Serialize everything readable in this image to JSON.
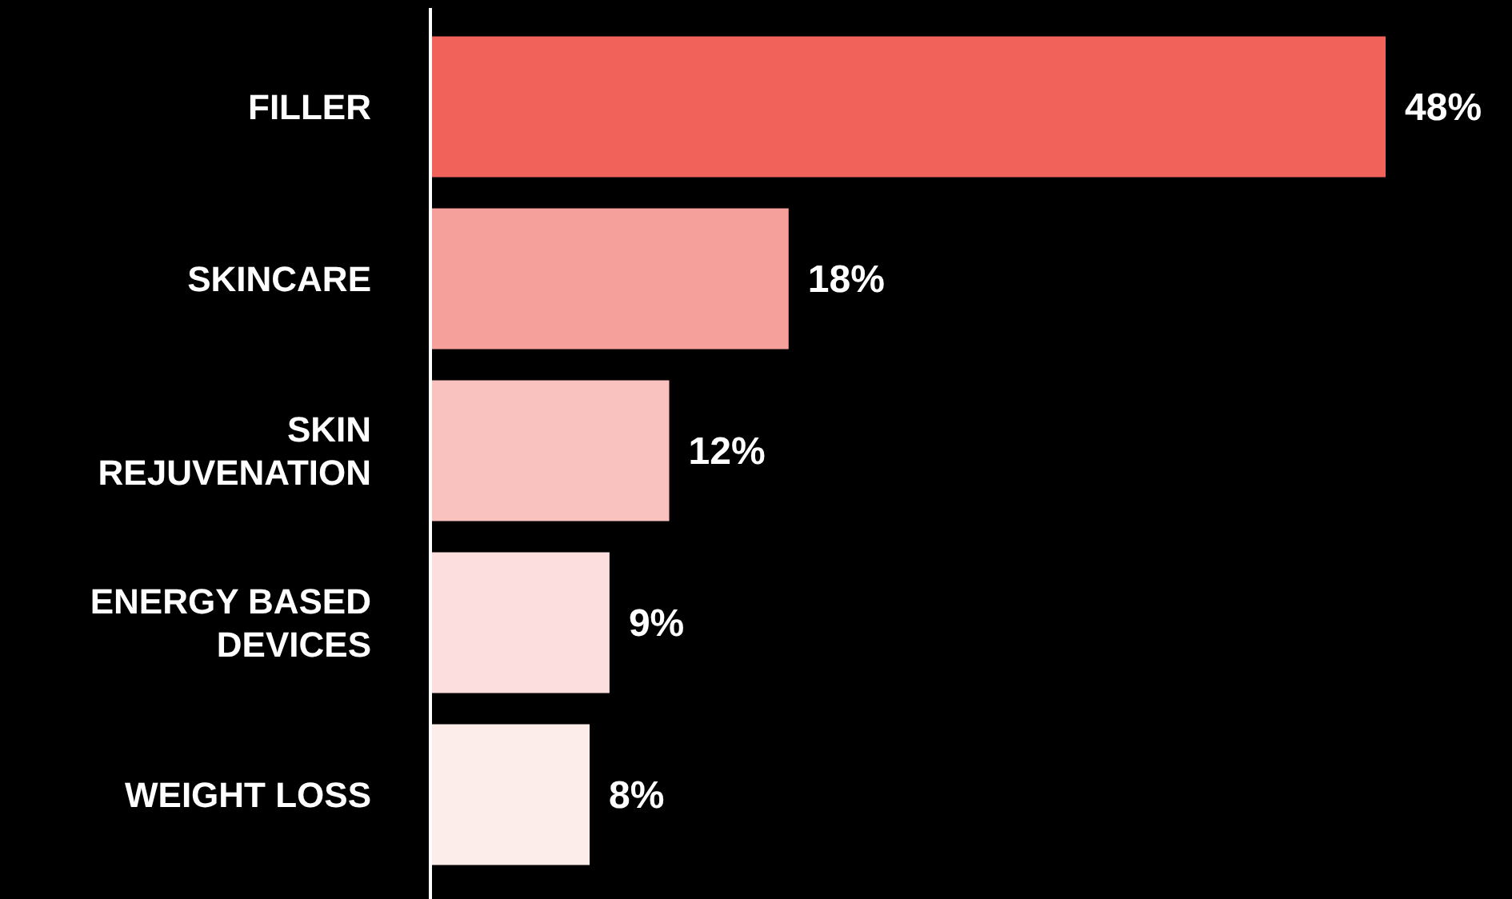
{
  "chart_data": {
    "type": "bar",
    "orientation": "horizontal",
    "categories": [
      "FILLER",
      "SKINCARE",
      "SKIN REJUVENATION",
      "ENERGY BASED DEVICES",
      "WEIGHT LOSS"
    ],
    "values": [
      48,
      18,
      12,
      9,
      8
    ],
    "value_labels": [
      "48%",
      "18%",
      "12%",
      "9%",
      "8%"
    ],
    "colors": [
      "#f0625a",
      "#f6a09c",
      "#f9c2bf",
      "#fbdedd",
      "#fcecea"
    ]
  }
}
